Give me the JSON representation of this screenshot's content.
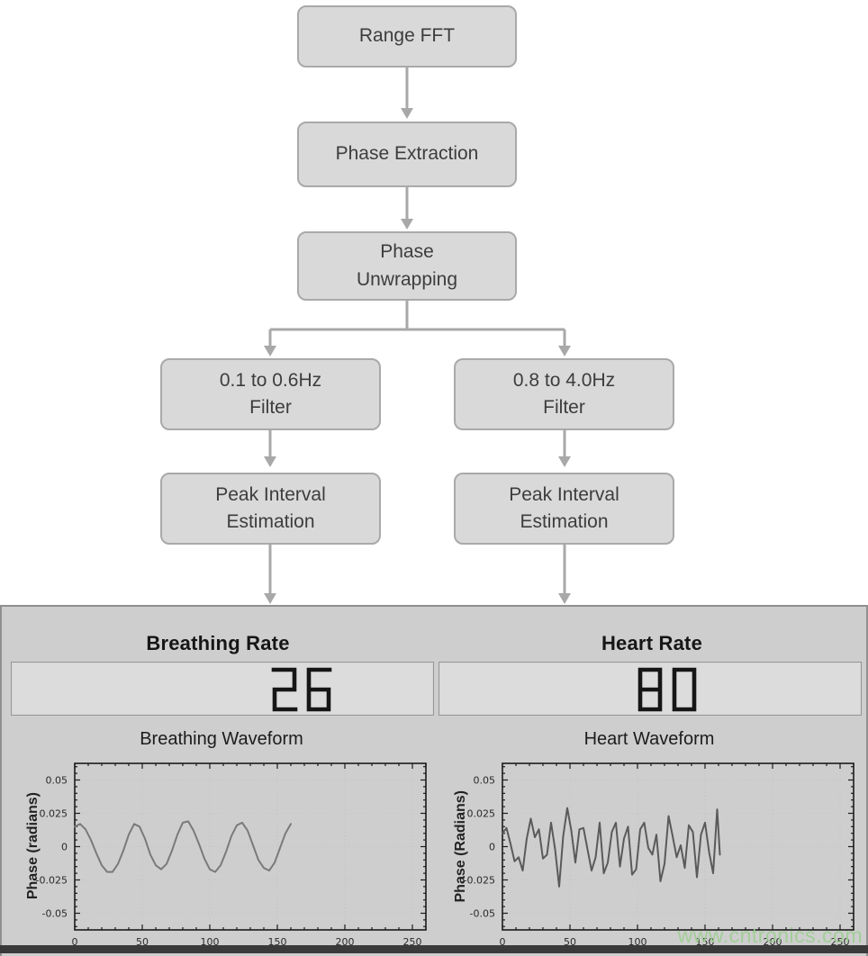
{
  "flowchart": {
    "nodes": [
      {
        "id": "range-fft",
        "lines": [
          "Range FFT"
        ]
      },
      {
        "id": "phase-extraction",
        "lines": [
          "Phase Extraction"
        ]
      },
      {
        "id": "phase-unwrapping",
        "lines": [
          "Phase",
          "Unwrapping"
        ]
      },
      {
        "id": "breathing-filter",
        "lines": [
          "0.1 to 0.6Hz",
          "Filter"
        ]
      },
      {
        "id": "heart-filter",
        "lines": [
          "0.8 to 4.0Hz",
          "Filter"
        ]
      },
      {
        "id": "breathing-peak-interval",
        "lines": [
          "Peak Interval",
          "Estimation"
        ]
      },
      {
        "id": "heart-peak-interval",
        "lines": [
          "Peak Interval",
          "Estimation"
        ]
      }
    ]
  },
  "panel": {
    "breathing": {
      "header": "Breathing Rate",
      "value": "26"
    },
    "heart": {
      "header": "Heart Rate",
      "value": "80"
    },
    "watermark": "www.cntronics.com"
  },
  "colors": {
    "node_fill": "#d9d9d9",
    "node_border": "#a9a9a9",
    "arrow": "#a8a8a8",
    "panel_bg": "#cecece",
    "display_bg": "#dcdcdc",
    "digit": "#161616",
    "watermark": "#9ecd94"
  },
  "chart_data": [
    {
      "type": "line",
      "title": "Breathing Waveform",
      "xlabel": "",
      "ylabel": "Phase (radians)",
      "xlim": [
        0,
        260
      ],
      "ylim": [
        -0.0625,
        0.0625
      ],
      "xticks": [
        0,
        50,
        100,
        150,
        200,
        250
      ],
      "yticks": [
        0.05,
        0.025,
        0,
        -0.025,
        -0.05
      ],
      "ytick_labels": [
        "0.05",
        "0.025",
        "0",
        "-0.025",
        "-0.05"
      ],
      "grid": true,
      "legend": "none",
      "line_color": "#7a7a7a",
      "x": [
        0,
        4,
        8,
        12,
        16,
        20,
        24,
        28,
        32,
        36,
        40,
        44,
        48,
        52,
        56,
        60,
        64,
        68,
        72,
        76,
        80,
        84,
        88,
        92,
        96,
        100,
        104,
        108,
        112,
        116,
        120,
        124,
        128,
        132,
        136,
        140,
        144,
        148,
        152,
        156,
        160
      ],
      "y": [
        0.015,
        0.017,
        0.013,
        0.005,
        -0.005,
        -0.014,
        -0.019,
        -0.019,
        -0.013,
        -0.003,
        0.009,
        0.017,
        0.015,
        0.006,
        -0.006,
        -0.014,
        -0.017,
        -0.013,
        -0.003,
        0.009,
        0.018,
        0.019,
        0.012,
        0.002,
        -0.009,
        -0.017,
        -0.019,
        -0.014,
        -0.004,
        0.008,
        0.016,
        0.018,
        0.012,
        0.001,
        -0.01,
        -0.016,
        -0.018,
        -0.012,
        -0.001,
        0.01,
        0.017
      ]
    },
    {
      "type": "line",
      "title": "Heart Waveform",
      "xlabel": "",
      "ylabel": "Phase (Radians)",
      "xlim": [
        0,
        260
      ],
      "ylim": [
        -0.0625,
        0.0625
      ],
      "xticks": [
        0,
        50,
        100,
        150,
        200,
        250
      ],
      "yticks": [
        0.05,
        0.025,
        0,
        -0.025,
        -0.05
      ],
      "ytick_labels": [
        "0.05",
        "0.025",
        "0",
        "-0.025",
        "-0.05"
      ],
      "grid": true,
      "legend": "none",
      "line_color": "#5a5a5a",
      "x": [
        0,
        3,
        6,
        9,
        12,
        15,
        18,
        21,
        24,
        27,
        30,
        33,
        36,
        39,
        42,
        45,
        48,
        51,
        54,
        57,
        60,
        63,
        66,
        69,
        72,
        75,
        78,
        81,
        84,
        87,
        90,
        93,
        96,
        99,
        102,
        105,
        108,
        111,
        114,
        117,
        120,
        123,
        126,
        129,
        132,
        135,
        138,
        141,
        144,
        147,
        150,
        153,
        156,
        159,
        161
      ],
      "y": [
        0.01,
        0.014,
        0.002,
        -0.011,
        -0.008,
        -0.018,
        0.006,
        0.021,
        0.007,
        0.013,
        -0.009,
        -0.006,
        0.018,
        -0.002,
        -0.03,
        0.008,
        0.029,
        0.012,
        -0.012,
        0.013,
        0.014,
        -0.002,
        -0.018,
        -0.008,
        0.018,
        -0.02,
        -0.012,
        0.011,
        0.018,
        -0.015,
        0.006,
        0.015,
        -0.021,
        -0.017,
        0.013,
        0.018,
        -0.001,
        -0.006,
        0.009,
        -0.026,
        -0.013,
        0.023,
        0.008,
        -0.008,
        0.001,
        -0.016,
        0.016,
        0.011,
        -0.023,
        0.009,
        0.018,
        -0.004,
        -0.02,
        0.028,
        -0.006
      ]
    }
  ]
}
